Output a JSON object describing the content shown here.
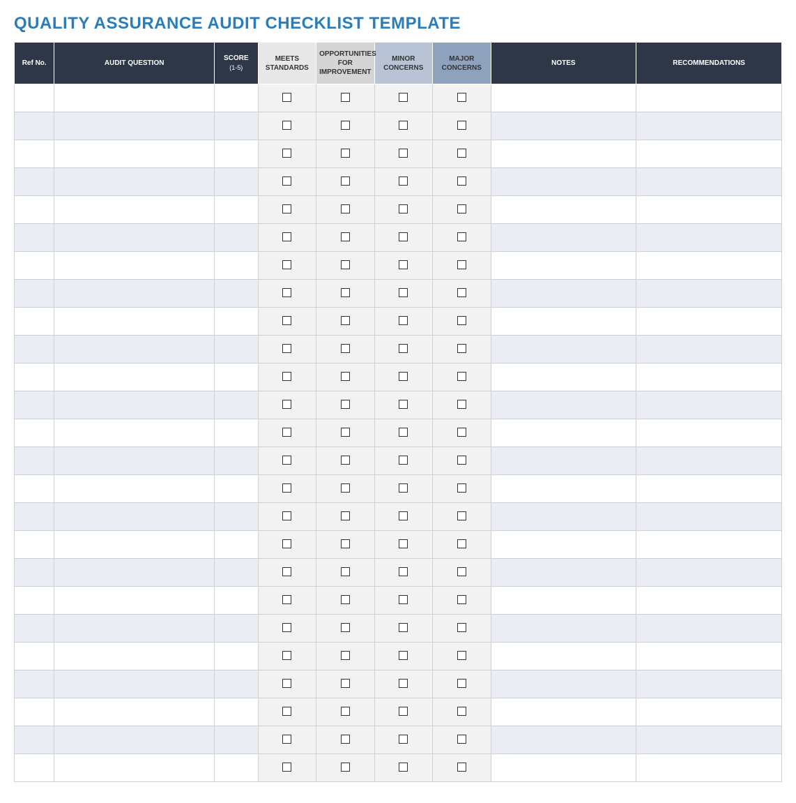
{
  "title": "QUALITY ASSURANCE AUDIT CHECKLIST TEMPLATE",
  "title_color": "#2a7db8",
  "header_bg_dark": "#2d3748",
  "header_bg_grey1": "#e8e8e8",
  "header_bg_grey2": "#d5d5d5",
  "header_bg_blue1": "#b8c4d6",
  "header_bg_blue2": "#8fa2bd",
  "row_alt_bg": "#eaeef4",
  "checkbox_col_bg": "#f2f2f2",
  "border_color": "#d0d0d0",
  "columns": [
    {
      "key": "refno",
      "label": "Ref No.",
      "sublabel": "",
      "bg": "dark",
      "class": "col-refno"
    },
    {
      "key": "question",
      "label": "AUDIT QUESTION",
      "sublabel": "",
      "bg": "dark",
      "class": "col-question"
    },
    {
      "key": "score",
      "label": "SCORE",
      "sublabel": "(1-5)",
      "bg": "dark",
      "class": "col-score"
    },
    {
      "key": "meets",
      "label": "MEETS STANDARDS",
      "sublabel": "",
      "bg": "grey1",
      "class": "col-check",
      "checkbox": true
    },
    {
      "key": "opp",
      "label": "OPPORTUNITIES FOR IMPROVEMENT",
      "sublabel": "",
      "bg": "grey2",
      "class": "col-check",
      "checkbox": true
    },
    {
      "key": "minor",
      "label": "MINOR CONCERNS",
      "sublabel": "",
      "bg": "blue1",
      "class": "col-check",
      "checkbox": true
    },
    {
      "key": "major",
      "label": "MAJOR CONCERNS",
      "sublabel": "",
      "bg": "blue2",
      "class": "col-check",
      "checkbox": true
    },
    {
      "key": "notes",
      "label": "NOTES",
      "sublabel": "",
      "bg": "dark",
      "class": "col-notes"
    },
    {
      "key": "rec",
      "label": "RECOMMENDATIONS",
      "sublabel": "",
      "bg": "dark",
      "class": "col-rec"
    }
  ],
  "row_count": 25
}
